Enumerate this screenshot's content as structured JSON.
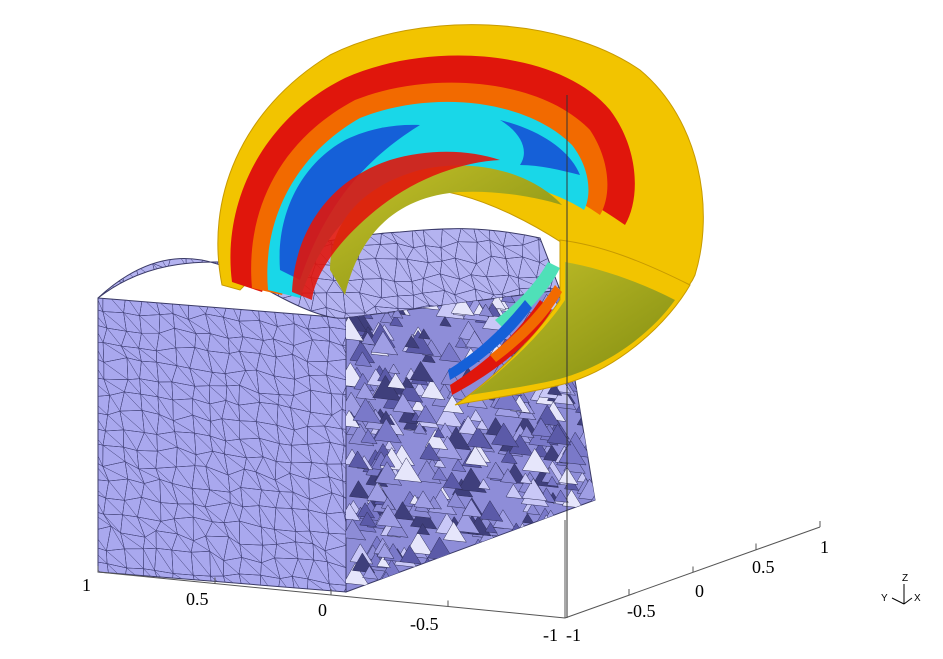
{
  "axes": {
    "left_axis_ticks": [
      "1",
      "0.5",
      "0",
      "-0.5",
      "-1"
    ],
    "right_axis_ticks": [
      "-1",
      "-0.5",
      "0",
      "0.5",
      "1"
    ]
  },
  "orientation_triad": {
    "z": "Z",
    "y": "Y",
    "x": "X"
  },
  "colors": {
    "mesh_fill": "#a9a8ee",
    "mesh_line": "#3a3a66",
    "shell_outer": "#f2c400",
    "band_red": "#e0160c",
    "band_orange": "#f26a00",
    "band_cyan": "#19d7e8",
    "band_blue": "#1560d8",
    "band_olive": "#9ea21a"
  }
}
